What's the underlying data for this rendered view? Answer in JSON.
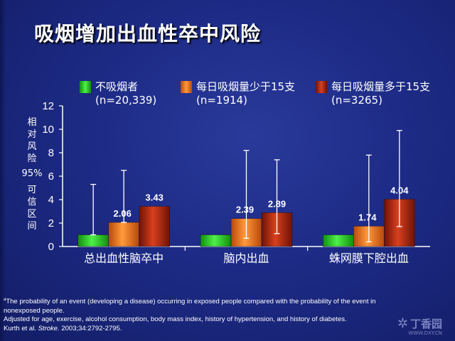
{
  "title": "吸烟增加出血性卒中风险",
  "legend": [
    {
      "label": "不吸烟者",
      "n": "(n=20,339)",
      "color": "#22c41c"
    },
    {
      "label": "每日吸烟量少于15支",
      "n": "(n=1914)",
      "color": "#e86a1a"
    },
    {
      "label": "每日吸烟量多于15支",
      "n": "(n=3265)",
      "color": "#a8200c"
    }
  ],
  "ylabel": {
    "line1": [
      "相",
      "对",
      "风",
      "险"
    ],
    "ci_level": "95%",
    "line2": [
      "可",
      "信",
      "区",
      "间"
    ]
  },
  "chart_data": {
    "type": "bar",
    "categories": [
      "总出血性脑卒中",
      "脑内出血",
      "蛛网膜下腔出血"
    ],
    "series": [
      {
        "name": "不吸烟者 (n=20,339)",
        "values": [
          1,
          1,
          1
        ],
        "ci_lower": [
          1,
          1,
          1
        ],
        "ci_upper": [
          5.3,
          1,
          1
        ],
        "data_labels": [
          "",
          "",
          ""
        ]
      },
      {
        "name": "每日吸烟量少于15支 (n=1914)",
        "values": [
          2.06,
          2.39,
          1.74
        ],
        "ci_lower": [
          2.06,
          0.7,
          0.4
        ],
        "ci_upper": [
          6.5,
          8.2,
          7.8
        ],
        "data_labels": [
          "2.06",
          "2.39",
          "1.74"
        ]
      },
      {
        "name": "每日吸烟量多于15支 (n=3265)",
        "values": [
          3.43,
          2.89,
          4.04
        ],
        "ci_lower": [
          3.43,
          1.1,
          1.7
        ],
        "ci_upper": [
          3.43,
          7.4,
          9.9
        ],
        "data_labels": [
          "3.43",
          "2.89",
          "4.04"
        ]
      }
    ],
    "yticks": [
      "0",
      "2",
      "4",
      "6",
      "8",
      "10",
      "12"
    ],
    "ylim": [
      0,
      12
    ],
    "grid": false,
    "legend_position": "top"
  },
  "footnote": {
    "marker": "a",
    "line1": "The probability of an event (developing a disease) occurring in exposed people compared with the probability of the event in",
    "line2": "nonexposed people.",
    "line3": "Adjusted for age, exercise, alcohol consumption, body mass index, history of hypertension, and history of diabetes.",
    "citation_authors": "Kurth et al. ",
    "citation_journal": "Stroke.",
    "citation_rest": " 2003;34:2792-2795."
  },
  "watermark": {
    "text": "丁香园",
    "url": "WWW.DXY.CN"
  }
}
